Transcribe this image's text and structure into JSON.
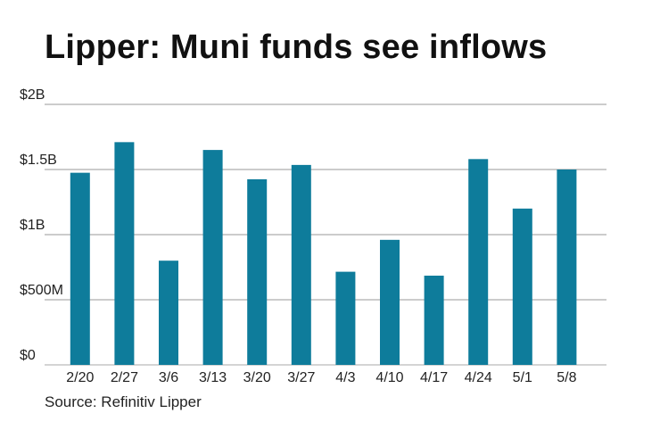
{
  "title": "Lipper: Muni funds see inflows",
  "source": "Source: Refinitiv Lipper",
  "colors": {
    "bar": "#0e7c9b",
    "grid": "#999999",
    "axis": "#aaaaaa"
  },
  "chart_data": {
    "type": "bar",
    "title": "Lipper: Muni funds see inflows",
    "xlabel": "",
    "ylabel": "",
    "categories": [
      "2/20",
      "2/27",
      "3/6",
      "3/13",
      "3/20",
      "3/27",
      "4/3",
      "4/10",
      "4/17",
      "4/24",
      "5/1",
      "5/8"
    ],
    "values": [
      1475,
      1710,
      800,
      1650,
      1425,
      1535,
      715,
      960,
      685,
      1580,
      1200,
      1500
    ],
    "unit": "millions USD",
    "ylim": [
      0,
      2000
    ],
    "yticks": [
      0,
      500,
      1000,
      1500,
      2000
    ],
    "ytick_labels": [
      "$0",
      "$500M",
      "$1B",
      "$1.5B",
      "$2B"
    ],
    "grid": true,
    "legend": "none"
  }
}
